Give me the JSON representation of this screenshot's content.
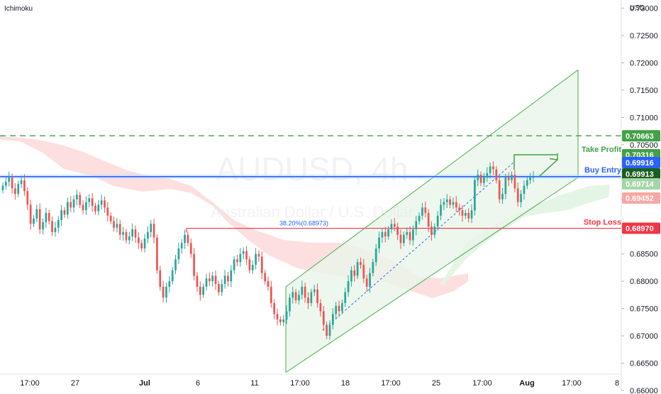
{
  "indicator_label": "Ichimoku",
  "chart_data": {
    "type": "candlestick",
    "title": "",
    "watermark_symbol": "AUDUSD, 4h",
    "watermark_name": "Australian Dollar / U.S. Dollar",
    "currency": "USD",
    "ylim": [
      0.66,
      0.7315
    ],
    "y_ticks": [
      "0.73000",
      "0.72500",
      "0.72000",
      "0.71500",
      "0.71000",
      "0.70500",
      "0.70000",
      "0.69500",
      "0.69000",
      "0.68500",
      "0.68000",
      "0.67500",
      "0.67000",
      "0.66500",
      "0.66000"
    ],
    "x_ticks": [
      "17:00",
      "27",
      "Jul",
      "6",
      "11",
      "17:00",
      "18",
      "17:00",
      "25",
      "17:00",
      "Aug",
      "17:00",
      "8"
    ],
    "bold_x_ticks": [
      "Jul",
      "Aug"
    ],
    "grid": false,
    "colors": {
      "up": "#26a69a",
      "down": "#ef5350",
      "channel": "#4caf50",
      "channel_fill": "#e8f5e9",
      "cloud_red": "#fddcdc",
      "cloud_green": "#e3f4e4",
      "buy": "#2962ff",
      "stop": "#f23645",
      "take_profit": "#43a047",
      "dashed": "#43a047",
      "tag_dark_green": "#1b5e20",
      "tag_light_green": "#a5d6a7",
      "tag_light_red": "#f7a8a3"
    },
    "levels": {
      "dashed_resistance": 0.70663,
      "take_profit": 0.70316,
      "buy_entry": 0.69916,
      "last_price": 0.69913,
      "cloud_upper": 0.69714,
      "cloud_lower": 0.69452,
      "stop_loss": 0.6897
    },
    "annotations": {
      "take_profit_label": "Take Profit",
      "buy_entry_label": "Buy Entry",
      "stop_loss_label": "Stop Loss",
      "fib_label": "38.20%(0.68973)"
    },
    "price_tags": [
      {
        "value": "0.70663",
        "kind": "dashed"
      },
      {
        "value": "0.70316",
        "kind": "take_profit"
      },
      {
        "value": "0.69916",
        "kind": "buy"
      },
      {
        "value": "0.69913",
        "kind": "last"
      },
      {
        "value": "0.69714",
        "kind": "cloud_upper"
      },
      {
        "value": "0.69452",
        "kind": "cloud_lower"
      },
      {
        "value": "0.68970",
        "kind": "stop"
      }
    ],
    "channel": {
      "lower_start": [
        0.6633
      ],
      "lower_end": [
        0.699
      ],
      "upper_start": [
        0.679
      ],
      "upper_end": [
        0.7187
      ]
    },
    "candles_close": [
      0.6975,
      0.6982,
      0.699,
      0.697,
      0.696,
      0.6978,
      0.6985,
      0.6965,
      0.694,
      0.6905,
      0.6915,
      0.6932,
      0.6895,
      0.6908,
      0.6925,
      0.691,
      0.689,
      0.6898,
      0.6912,
      0.693,
      0.6922,
      0.6945,
      0.6935,
      0.695,
      0.6958,
      0.694,
      0.693,
      0.6945,
      0.6952,
      0.6938,
      0.6928,
      0.694,
      0.6948,
      0.6935,
      0.692,
      0.691,
      0.6898,
      0.6905,
      0.6885,
      0.689,
      0.6875,
      0.6882,
      0.6895,
      0.688,
      0.687,
      0.686,
      0.6878,
      0.689,
      0.6905,
      0.688,
      0.682,
      0.679,
      0.677,
      0.679,
      0.68,
      0.682,
      0.684,
      0.686,
      0.687,
      0.6885,
      0.687,
      0.685,
      0.681,
      0.679,
      0.6775,
      0.679,
      0.6805,
      0.68,
      0.681,
      0.6795,
      0.678,
      0.6795,
      0.681,
      0.68,
      0.682,
      0.684,
      0.6835,
      0.685,
      0.6855,
      0.684,
      0.682,
      0.683,
      0.685,
      0.6845,
      0.6815,
      0.68,
      0.679,
      0.676,
      0.674,
      0.673,
      0.6725,
      0.673,
      0.6745,
      0.677,
      0.678,
      0.6765,
      0.6775,
      0.679,
      0.677,
      0.676,
      0.678,
      0.6785,
      0.676,
      0.6745,
      0.672,
      0.67,
      0.672,
      0.674,
      0.6755,
      0.6745,
      0.676,
      0.678,
      0.68,
      0.682,
      0.681,
      0.6835,
      0.683,
      0.6805,
      0.679,
      0.6815,
      0.6835,
      0.686,
      0.688,
      0.689,
      0.6882,
      0.6895,
      0.6905,
      0.69,
      0.6885,
      0.687,
      0.6885,
      0.689,
      0.6875,
      0.6895,
      0.691,
      0.692,
      0.6935,
      0.6925,
      0.69,
      0.6885,
      0.69,
      0.692,
      0.694,
      0.6945,
      0.695,
      0.694,
      0.6945,
      0.6935,
      0.693,
      0.692,
      0.6925,
      0.6915,
      0.693,
      0.6985,
      0.6995,
      0.698,
      0.699,
      0.6998,
      0.701,
      0.7005,
      0.6985,
      0.695,
      0.696,
      0.699,
      0.6985,
      0.6995,
      0.697,
      0.6945,
      0.696,
      0.6975,
      0.6985,
      0.699,
      0.6991
    ]
  }
}
